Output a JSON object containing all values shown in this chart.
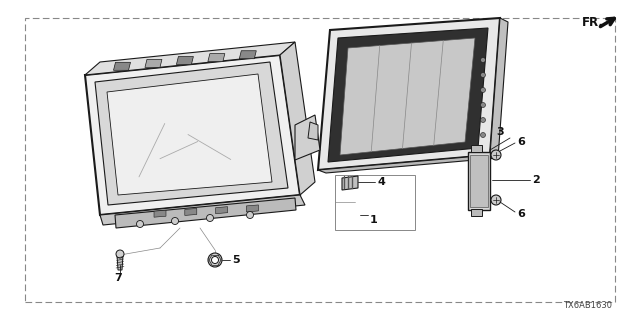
{
  "bg_color": "#ffffff",
  "border_color": "#888888",
  "line_color": "#1a1a1a",
  "label_color": "#111111",
  "diagram_id": "TX6AB1630",
  "fr_label": "FR.",
  "figsize": [
    6.4,
    3.2
  ],
  "dpi": 100,
  "border_dash": [
    6,
    3
  ]
}
